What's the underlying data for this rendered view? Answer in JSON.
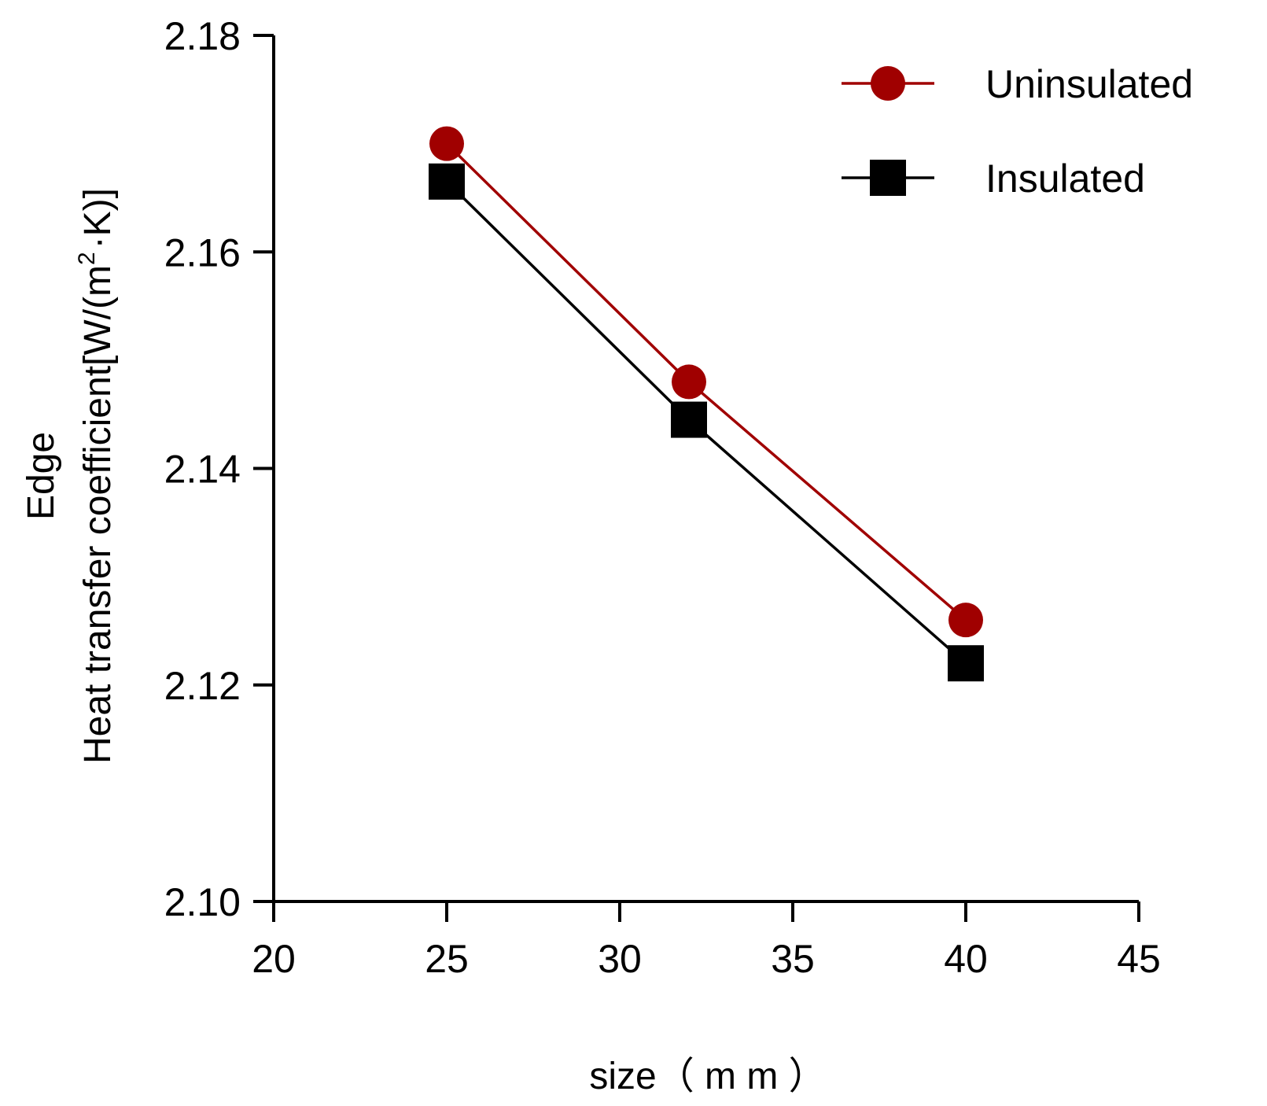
{
  "chart_data": {
    "type": "line",
    "title": "",
    "x": [
      25,
      32,
      40
    ],
    "series": [
      {
        "name": "Uninsulated",
        "values": [
          2.17,
          2.148,
          2.126
        ],
        "color": "#a00000",
        "marker": "circle"
      },
      {
        "name": "Insulated",
        "values": [
          2.1665,
          2.1445,
          2.122
        ],
        "color": "#000000",
        "marker": "square"
      }
    ],
    "xlabel": "size（ m m ）",
    "ylabel_line1": "Edge",
    "ylabel_line2_prefix": "Heat transfer coefficient[W/(m",
    "ylabel_superscript": "2",
    "ylabel_line2_suffix": "·K)]",
    "xlim": [
      20,
      45
    ],
    "ylim": [
      2.1,
      2.18
    ],
    "xticks": [
      "20",
      "25",
      "30",
      "35",
      "40",
      "45"
    ],
    "yticks": [
      "2.10",
      "2.12",
      "2.14",
      "2.16",
      "2.18"
    ],
    "grid": false,
    "legend_position": "top-right"
  }
}
